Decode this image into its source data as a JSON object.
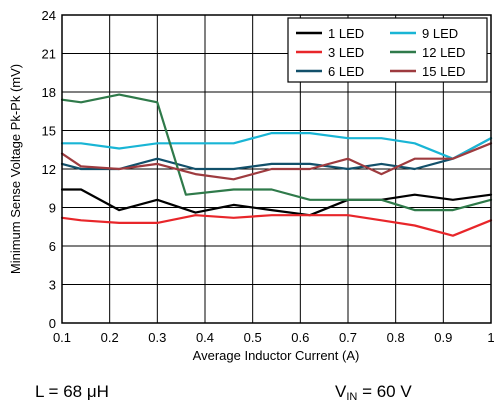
{
  "chart_data": {
    "type": "line",
    "title": "",
    "xlabel": "Average Inductor Current (A)",
    "ylabel": "Minimum Sense Voltage Pk-Pk (mV)",
    "xlim": [
      0.1,
      1.0
    ],
    "ylim": [
      0,
      24
    ],
    "xticks": [
      "0.1",
      "0.2",
      "0.3",
      "0.4",
      "0.5",
      "0.6",
      "0.7",
      "0.8",
      "0.9",
      "1"
    ],
    "yticks": [
      "0",
      "3",
      "6",
      "9",
      "12",
      "15",
      "18",
      "21",
      "24"
    ],
    "grid": true,
    "legend_position": "top-right",
    "series": [
      {
        "name": "1 LED",
        "color": "#000000",
        "points": [
          [
            0.1,
            10.4
          ],
          [
            0.14,
            10.4
          ],
          [
            0.22,
            8.8
          ],
          [
            0.3,
            9.6
          ],
          [
            0.38,
            8.6
          ],
          [
            0.46,
            9.2
          ],
          [
            0.54,
            8.8
          ],
          [
            0.62,
            8.4
          ],
          [
            0.7,
            9.6
          ],
          [
            0.77,
            9.6
          ],
          [
            0.84,
            10.0
          ],
          [
            0.92,
            9.6
          ],
          [
            1.0,
            10.0
          ]
        ]
      },
      {
        "name": "3 LED",
        "color": "#e8262a",
        "points": [
          [
            0.1,
            8.2
          ],
          [
            0.14,
            8.0
          ],
          [
            0.22,
            7.8
          ],
          [
            0.3,
            7.8
          ],
          [
            0.38,
            8.4
          ],
          [
            0.46,
            8.2
          ],
          [
            0.54,
            8.4
          ],
          [
            0.62,
            8.4
          ],
          [
            0.7,
            8.4
          ],
          [
            0.77,
            8.0
          ],
          [
            0.84,
            7.6
          ],
          [
            0.92,
            6.8
          ],
          [
            1.0,
            8.0
          ]
        ]
      },
      {
        "name": "6 LED",
        "color": "#12506a",
        "points": [
          [
            0.1,
            12.4
          ],
          [
            0.14,
            12.0
          ],
          [
            0.22,
            12.0
          ],
          [
            0.3,
            12.8
          ],
          [
            0.38,
            12.0
          ],
          [
            0.46,
            12.0
          ],
          [
            0.54,
            12.4
          ],
          [
            0.62,
            12.4
          ],
          [
            0.7,
            12.0
          ],
          [
            0.77,
            12.4
          ],
          [
            0.84,
            12.0
          ],
          [
            0.92,
            12.8
          ],
          [
            1.0,
            14.4
          ]
        ]
      },
      {
        "name": "9 LED",
        "color": "#19b5d5",
        "points": [
          [
            0.1,
            14.0
          ],
          [
            0.14,
            14.0
          ],
          [
            0.22,
            13.6
          ],
          [
            0.3,
            14.0
          ],
          [
            0.38,
            14.0
          ],
          [
            0.46,
            14.0
          ],
          [
            0.54,
            14.8
          ],
          [
            0.62,
            14.8
          ],
          [
            0.7,
            14.4
          ],
          [
            0.77,
            14.4
          ],
          [
            0.84,
            14.0
          ],
          [
            0.92,
            12.8
          ],
          [
            1.0,
            14.4
          ]
        ]
      },
      {
        "name": "12 LED",
        "color": "#2f7a4a",
        "points": [
          [
            0.1,
            17.4
          ],
          [
            0.14,
            17.2
          ],
          [
            0.22,
            17.8
          ],
          [
            0.3,
            17.2
          ],
          [
            0.36,
            10.0
          ],
          [
            0.46,
            10.4
          ],
          [
            0.54,
            10.4
          ],
          [
            0.62,
            9.6
          ],
          [
            0.7,
            9.6
          ],
          [
            0.77,
            9.6
          ],
          [
            0.84,
            8.8
          ],
          [
            0.92,
            8.8
          ],
          [
            1.0,
            9.6
          ]
        ]
      },
      {
        "name": "15 LED",
        "color": "#9e3b3f",
        "points": [
          [
            0.1,
            13.2
          ],
          [
            0.14,
            12.2
          ],
          [
            0.22,
            12.0
          ],
          [
            0.3,
            12.4
          ],
          [
            0.38,
            11.6
          ],
          [
            0.46,
            11.2
          ],
          [
            0.54,
            12.0
          ],
          [
            0.62,
            12.0
          ],
          [
            0.7,
            12.8
          ],
          [
            0.77,
            11.6
          ],
          [
            0.84,
            12.8
          ],
          [
            0.92,
            12.8
          ],
          [
            1.0,
            14.0
          ]
        ]
      }
    ]
  },
  "conditions": {
    "inductance": "L = 68 μH",
    "vin_prefix": "V",
    "vin_sub": "IN",
    "vin_value": " = 60 V"
  }
}
